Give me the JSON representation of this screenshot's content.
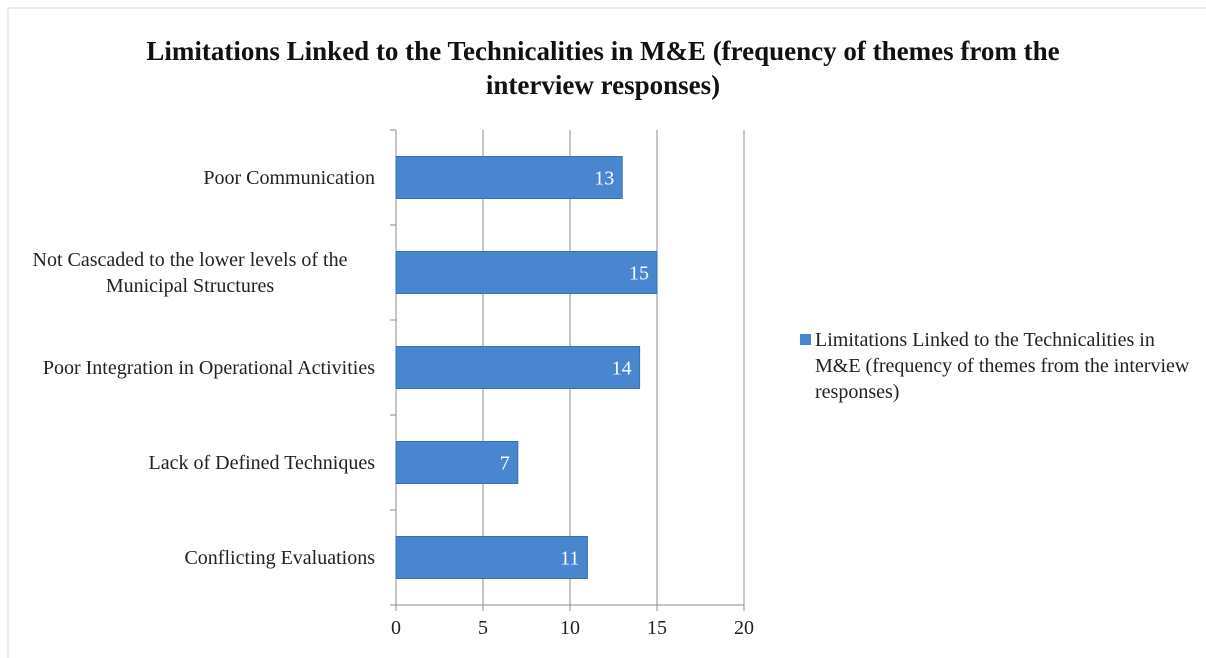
{
  "chart_data": {
    "type": "bar",
    "orientation": "horizontal",
    "title": "Limitations Linked to the Technicalities in M&E (frequency of themes from the interview responses)",
    "categories": [
      "Poor Communication",
      "Not Cascaded to the lower levels of the Municipal Structures",
      "Poor Integration in Operational Activities",
      "Lack of Defined Techniques",
      "Conflicting Evaluations"
    ],
    "series": [
      {
        "name": "Limitations Linked to the Technicalities in M&E (frequency of themes from the interview responses)",
        "color": "#4a86d0",
        "values": [
          13,
          15,
          14,
          7,
          11
        ]
      }
    ],
    "xlim": [
      0,
      20
    ],
    "xticks": [
      0,
      5,
      10,
      15,
      20
    ],
    "grid": true,
    "legend": "right",
    "data_labels": true
  }
}
